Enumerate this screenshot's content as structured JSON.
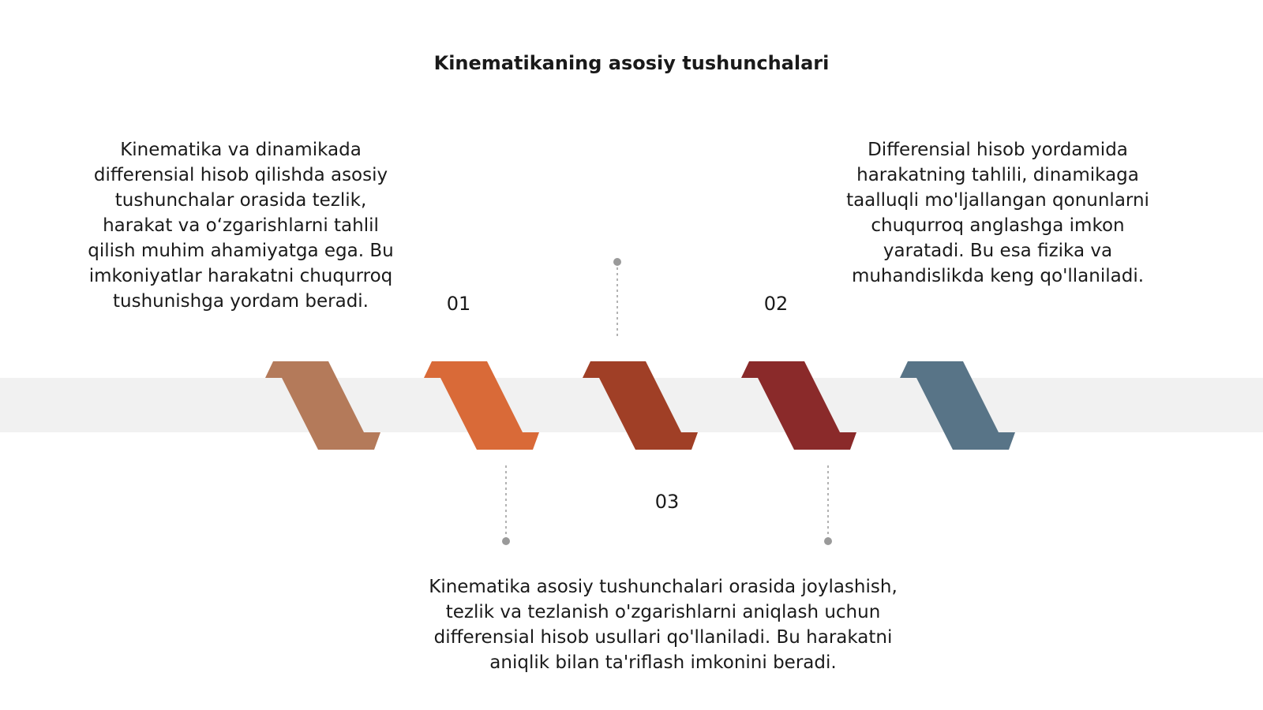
{
  "title": "Kinematikaning asosiy tushunchalari",
  "colors": {
    "band": "#F1F1F1",
    "connector": "#9A9A9A",
    "steps": [
      "#B47A5A",
      "#D96A38",
      "#A03F26",
      "#8A2A2A",
      "#587487"
    ]
  },
  "steps": [
    {
      "number": "01",
      "lines": [
        "Kinematika va dinamikada",
        "differensial hisob qilishda asosiy",
        "tushunchalar orasida tezlik,",
        "harakat va o‘zgarishlarni tahlil",
        "qilish muhim ahamiyatga ega. Bu",
        "imkoniyatlar harakatni chuqurroq",
        "tushunishga yordam beradi."
      ]
    },
    {
      "number": "02",
      "lines": [
        "Differensial hisob yordamida",
        "harakatning tahlili, dinamikaga",
        "taalluqli mo'ljallangan qonunlarni",
        "chuqurroq anglashga imkon",
        "yaratadi. Bu esa fizika va",
        "muhandislikda keng qo'llaniladi."
      ]
    },
    {
      "number": "03",
      "lines": [
        "Kinematika asosiy tushunchalari orasida joylashish,",
        "tezlik va tezlanish o'zgarishlarni aniqlash uchun",
        "differensial hisob usullari qo'llaniladi. Bu harakatni",
        "aniqlik bilan ta'riflash imkonini beradi."
      ]
    }
  ]
}
